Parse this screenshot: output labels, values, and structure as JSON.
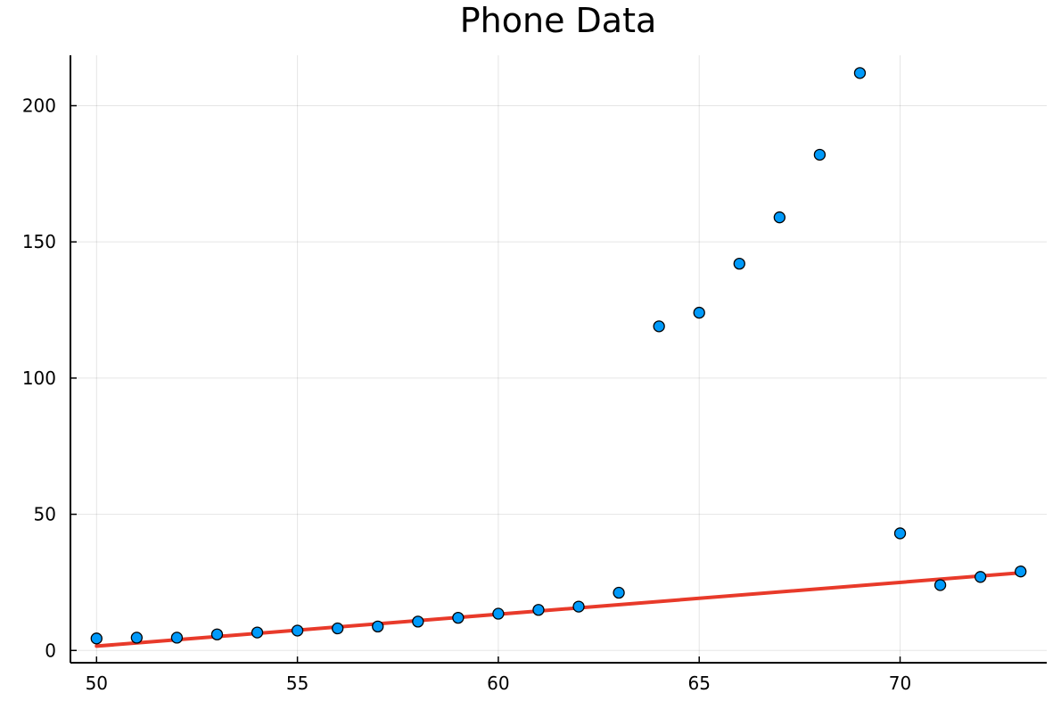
{
  "chart_data": {
    "type": "scatter",
    "title": "Phone Data",
    "xlabel": "",
    "ylabel": "",
    "xlim": [
      49.35,
      73.65
    ],
    "ylim": [
      -4.5,
      218.5
    ],
    "x_ticks": [
      50,
      55,
      60,
      65,
      70
    ],
    "y_ticks": [
      0,
      50,
      100,
      150,
      200
    ],
    "grid": true,
    "legend": "none",
    "series": [
      {
        "type": "scatter",
        "color": "#009AFA",
        "points": [
          {
            "x": 50,
            "y": 4.4
          },
          {
            "x": 51,
            "y": 4.7
          },
          {
            "x": 52,
            "y": 4.7
          },
          {
            "x": 53,
            "y": 5.9
          },
          {
            "x": 54,
            "y": 6.6
          },
          {
            "x": 55,
            "y": 7.3
          },
          {
            "x": 56,
            "y": 8.1
          },
          {
            "x": 57,
            "y": 8.8
          },
          {
            "x": 58,
            "y": 10.6
          },
          {
            "x": 59,
            "y": 12.0
          },
          {
            "x": 60,
            "y": 13.5
          },
          {
            "x": 61,
            "y": 14.9
          },
          {
            "x": 62,
            "y": 16.1
          },
          {
            "x": 63,
            "y": 21.2
          },
          {
            "x": 64,
            "y": 119.0
          },
          {
            "x": 65,
            "y": 124.0
          },
          {
            "x": 66,
            "y": 142.0
          },
          {
            "x": 67,
            "y": 159.0
          },
          {
            "x": 68,
            "y": 182.0
          },
          {
            "x": 69,
            "y": 212.0
          },
          {
            "x": 70,
            "y": 43.0
          },
          {
            "x": 71,
            "y": 24.0
          },
          {
            "x": 72,
            "y": 27.0
          },
          {
            "x": 73,
            "y": 29.0
          }
        ]
      },
      {
        "type": "line",
        "color": "#E83A2A",
        "points": [
          {
            "x": 50,
            "y": 1.6
          },
          {
            "x": 73,
            "y": 28.5
          }
        ]
      }
    ]
  }
}
